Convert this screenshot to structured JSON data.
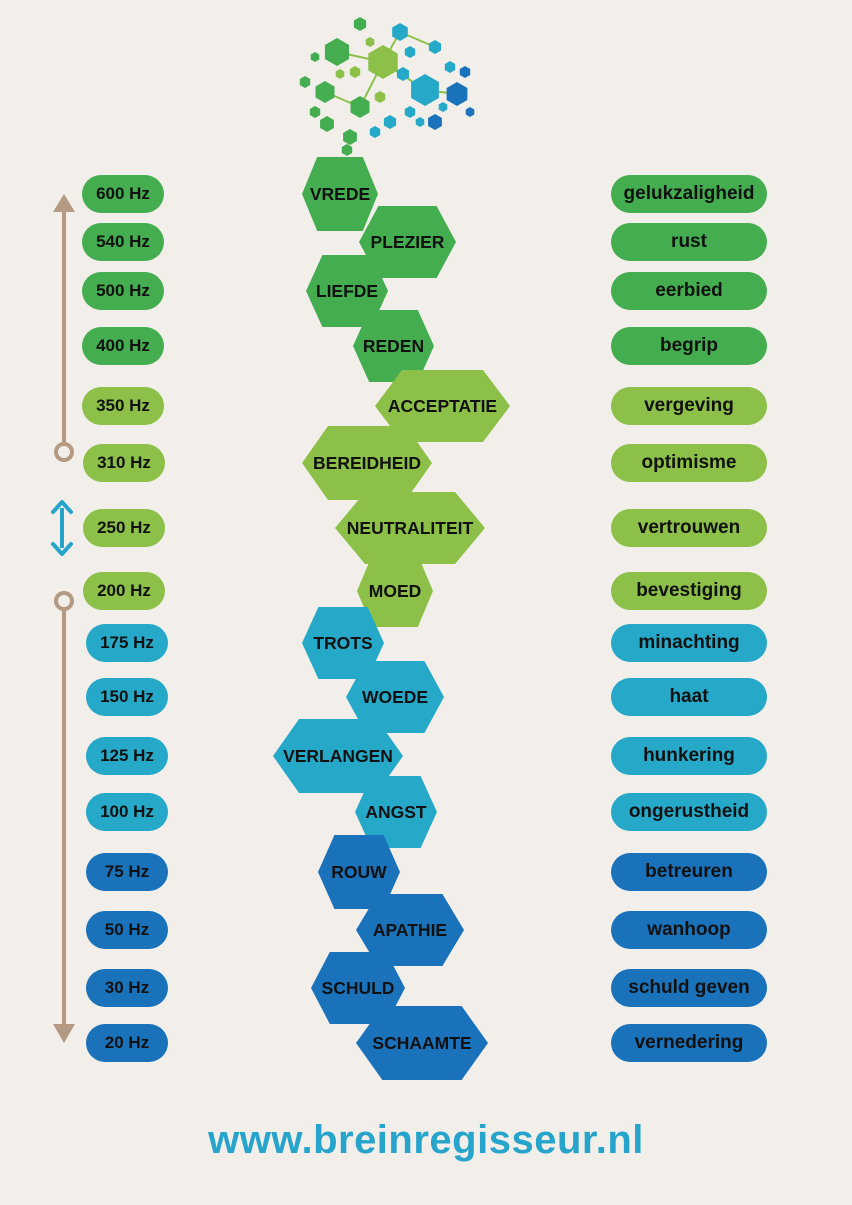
{
  "colors": {
    "background": "#f2efeb",
    "green": "#43ad4f",
    "lime": "#8cc049",
    "teal": "#26a8c8",
    "blue": "#1a72bb",
    "arrow_brown": "#b49a83",
    "arrow_cyan": "#27a4cc",
    "website": "#27a4cc"
  },
  "logo": {
    "icon": "hexagon-network-logo"
  },
  "scale": [
    {
      "hz": "600 Hz",
      "level": "VREDE",
      "emotion": "gelukzaligheid",
      "group": "green"
    },
    {
      "hz": "540 Hz",
      "level": "PLEZIER",
      "emotion": "rust",
      "group": "green"
    },
    {
      "hz": "500 Hz",
      "level": "LIEFDE",
      "emotion": "eerbied",
      "group": "green"
    },
    {
      "hz": "400 Hz",
      "level": "REDEN",
      "emotion": "begrip",
      "group": "green"
    },
    {
      "hz": "350 Hz",
      "level": "ACCEPTATIE",
      "emotion": "vergeving",
      "group": "lime"
    },
    {
      "hz": "310 Hz",
      "level": "BEREIDHEID",
      "emotion": "optimisme",
      "group": "lime"
    },
    {
      "hz": "250 Hz",
      "level": "NEUTRALITEIT",
      "emotion": "vertrouwen",
      "group": "lime"
    },
    {
      "hz": "200 Hz",
      "level": "MOED",
      "emotion": "bevestiging",
      "group": "lime"
    },
    {
      "hz": "175 Hz",
      "level": "TROTS",
      "emotion": "minachting",
      "group": "teal"
    },
    {
      "hz": "150 Hz",
      "level": "WOEDE",
      "emotion": "haat",
      "group": "teal"
    },
    {
      "hz": "125 Hz",
      "level": "VERLANGEN",
      "emotion": "hunkering",
      "group": "teal"
    },
    {
      "hz": "100 Hz",
      "level": "ANGST",
      "emotion": "ongerustheid",
      "group": "teal"
    },
    {
      "hz": "75 Hz",
      "level": "ROUW",
      "emotion": "betreuren",
      "group": "blue"
    },
    {
      "hz": "50 Hz",
      "level": "APATHIE",
      "emotion": "wanhoop",
      "group": "blue"
    },
    {
      "hz": "30 Hz",
      "level": "SCHULD",
      "emotion": "schuld geven",
      "group": "blue"
    },
    {
      "hz": "20 Hz",
      "level": "SCHAAMTE",
      "emotion": "vernedering",
      "group": "blue"
    }
  ],
  "website": "www.breinregisseur.nl"
}
